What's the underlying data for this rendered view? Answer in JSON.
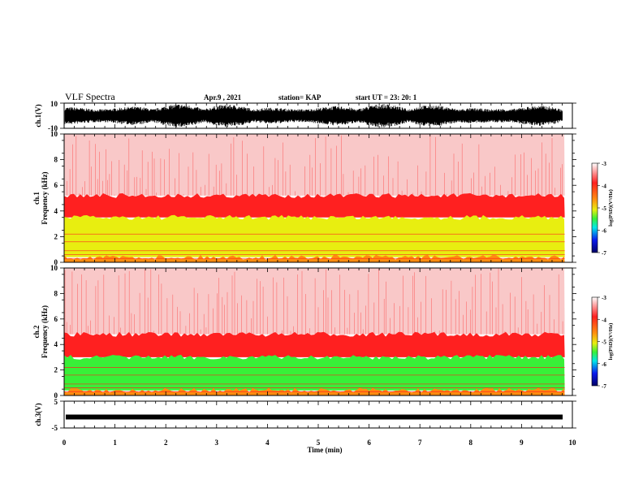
{
  "header": {
    "title": "VLF Spectra",
    "date": "Apr.9 , 2021",
    "station": "station= KAP",
    "start": "start UT = 23: 20: 1"
  },
  "chart_data": [
    {
      "type": "area",
      "name": "ch1-waveform",
      "ylabel": "ch.1(V)",
      "yticks": [
        "10",
        "-10"
      ],
      "ylim": [
        -10,
        10
      ],
      "xlim": [
        0,
        10
      ]
    },
    {
      "type": "heatmap",
      "name": "ch1-spectrogram",
      "ylabel": "ch.1\nFrequency (kHz)",
      "ylabel_line1": "ch.1",
      "ylabel_line2": "Frequency (kHz)",
      "yticks": [
        "0",
        "2",
        "4",
        "6",
        "8",
        "10"
      ],
      "ylim": [
        0,
        10
      ],
      "xlim": [
        0,
        9.85
      ],
      "bands": [
        {
          "from": 0,
          "to": 0.4,
          "level": "orange"
        },
        {
          "from": 0.4,
          "to": 3.5,
          "level": "yellow"
        },
        {
          "from": 3.5,
          "to": 5.2,
          "level": "red"
        },
        {
          "from": 5.2,
          "to": 10,
          "level": "light-red"
        }
      ],
      "colorbar": {
        "label": "log(PSD)(V²/Hz)",
        "ticks": [
          "-3",
          "-4",
          "-5",
          "-6",
          "-7"
        ],
        "range": [
          -7,
          -3
        ]
      }
    },
    {
      "type": "heatmap",
      "name": "ch2-spectrogram",
      "ylabel": "ch.2\nFrequency (kHz)",
      "ylabel_line1": "ch.2",
      "ylabel_line2": "Frequency (kHz)",
      "yticks": [
        "0",
        "2",
        "4",
        "6",
        "8",
        "10"
      ],
      "ylim": [
        0,
        10
      ],
      "xlim": [
        0,
        9.85
      ],
      "bands": [
        {
          "from": 0,
          "to": 0.4,
          "level": "orange"
        },
        {
          "from": 0.4,
          "to": 3.0,
          "level": "green"
        },
        {
          "from": 3.0,
          "to": 4.8,
          "level": "red"
        },
        {
          "from": 4.8,
          "to": 10,
          "level": "light-red"
        }
      ],
      "colorbar": {
        "label": "log(PSD)(V²/Hz)",
        "ticks": [
          "-3",
          "-4",
          "-5",
          "-6",
          "-7"
        ],
        "range": [
          -7,
          -3
        ]
      }
    },
    {
      "type": "area",
      "name": "ch3-waveform",
      "ylabel": "ch.3(V)",
      "yticks": [
        "5",
        "-5"
      ],
      "ylim": [
        -5,
        5
      ],
      "xlim": [
        0,
        10
      ]
    }
  ],
  "xaxis": {
    "label": "Time (min)",
    "ticks": [
      "0",
      "1",
      "2",
      "3",
      "4",
      "5",
      "6",
      "7",
      "8",
      "9",
      "10"
    ],
    "range": [
      0,
      10
    ]
  },
  "colors": {
    "white": "#ffffff",
    "light-red": "#f9c8c8",
    "red": "#ff2020",
    "orange": "#ff8c10",
    "yellow": "#e8ee10",
    "green": "#38f038",
    "cyan": "#00e8e8",
    "blue": "#0a1aee",
    "navy": "#000066"
  }
}
